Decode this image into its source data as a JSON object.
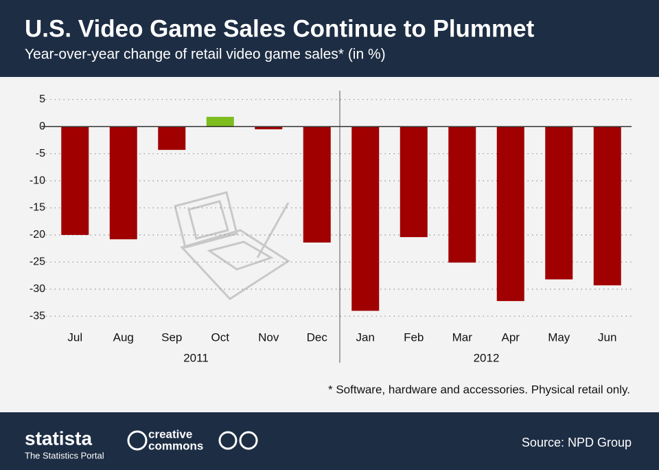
{
  "chart_data": {
    "type": "bar",
    "title": "U.S. Video Game Sales Continue to Plummet",
    "subtitle": "Year-over-year change of retail video game sales* (in %)",
    "groups": [
      {
        "label": "2011",
        "categories": [
          "Jul",
          "Aug",
          "Sep",
          "Oct",
          "Nov",
          "Dec"
        ],
        "values": [
          -20,
          -20.8,
          -4.3,
          1.8,
          -0.5,
          -21.4
        ]
      },
      {
        "label": "2012",
        "categories": [
          "Jan",
          "Feb",
          "Mar",
          "Apr",
          "May",
          "Jun"
        ],
        "values": [
          -34,
          -20.4,
          -25.1,
          -32.2,
          -28.2,
          -29.3
        ]
      }
    ],
    "negative_color": "#a00000",
    "positive_color": "#7dbd1e",
    "ylim": [
      -37,
      7
    ],
    "yticks": [
      5,
      0,
      -5,
      -10,
      -15,
      -20,
      -25,
      -30,
      -35
    ],
    "grid": true,
    "footnote": "* Software, hardware and accessories. Physical retail only.",
    "source": "Source: NPD Group"
  },
  "footer": {
    "brand": "statista",
    "tagline": "The Statistics Portal",
    "license_top": "creative",
    "license_bottom": "commons"
  }
}
